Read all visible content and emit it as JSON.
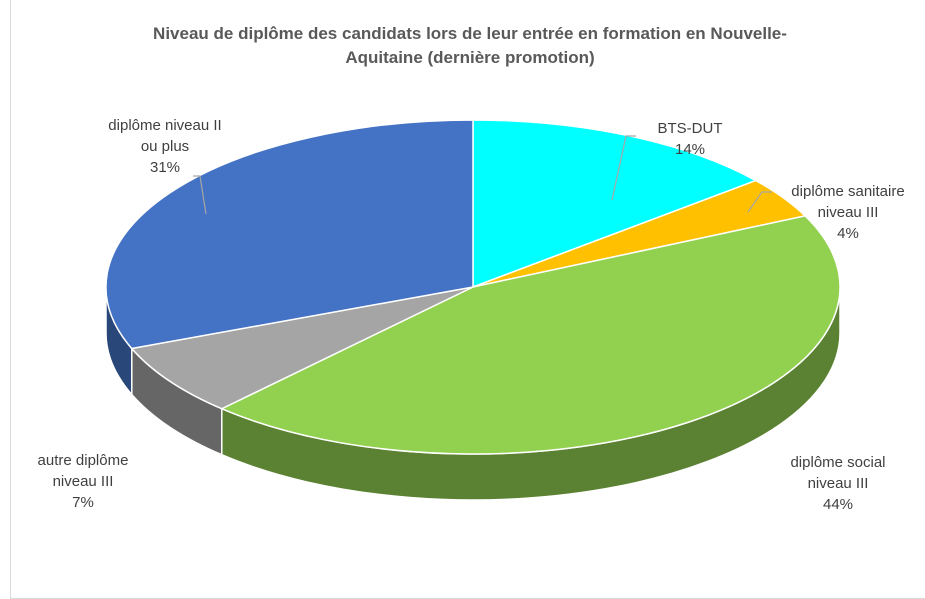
{
  "chart_data": {
    "type": "pie",
    "title": "Niveau de diplôme des candidats lors de leur entrée en formation en Nouvelle-Aquitaine (dernière promotion)",
    "categories": [
      "BTS-DUT",
      "diplôme sanitaire niveau III",
      "diplôme social niveau III",
      "autre diplôme niveau III",
      "diplôme niveau II ou plus"
    ],
    "values": [
      14,
      4,
      44,
      7,
      31
    ],
    "value_labels": [
      "14%",
      "4%",
      "44%",
      "7%",
      "31%"
    ],
    "colors": [
      "#00ffff",
      "#ffc000",
      "#92d050",
      "#a5a5a5",
      "#4472c4"
    ]
  }
}
